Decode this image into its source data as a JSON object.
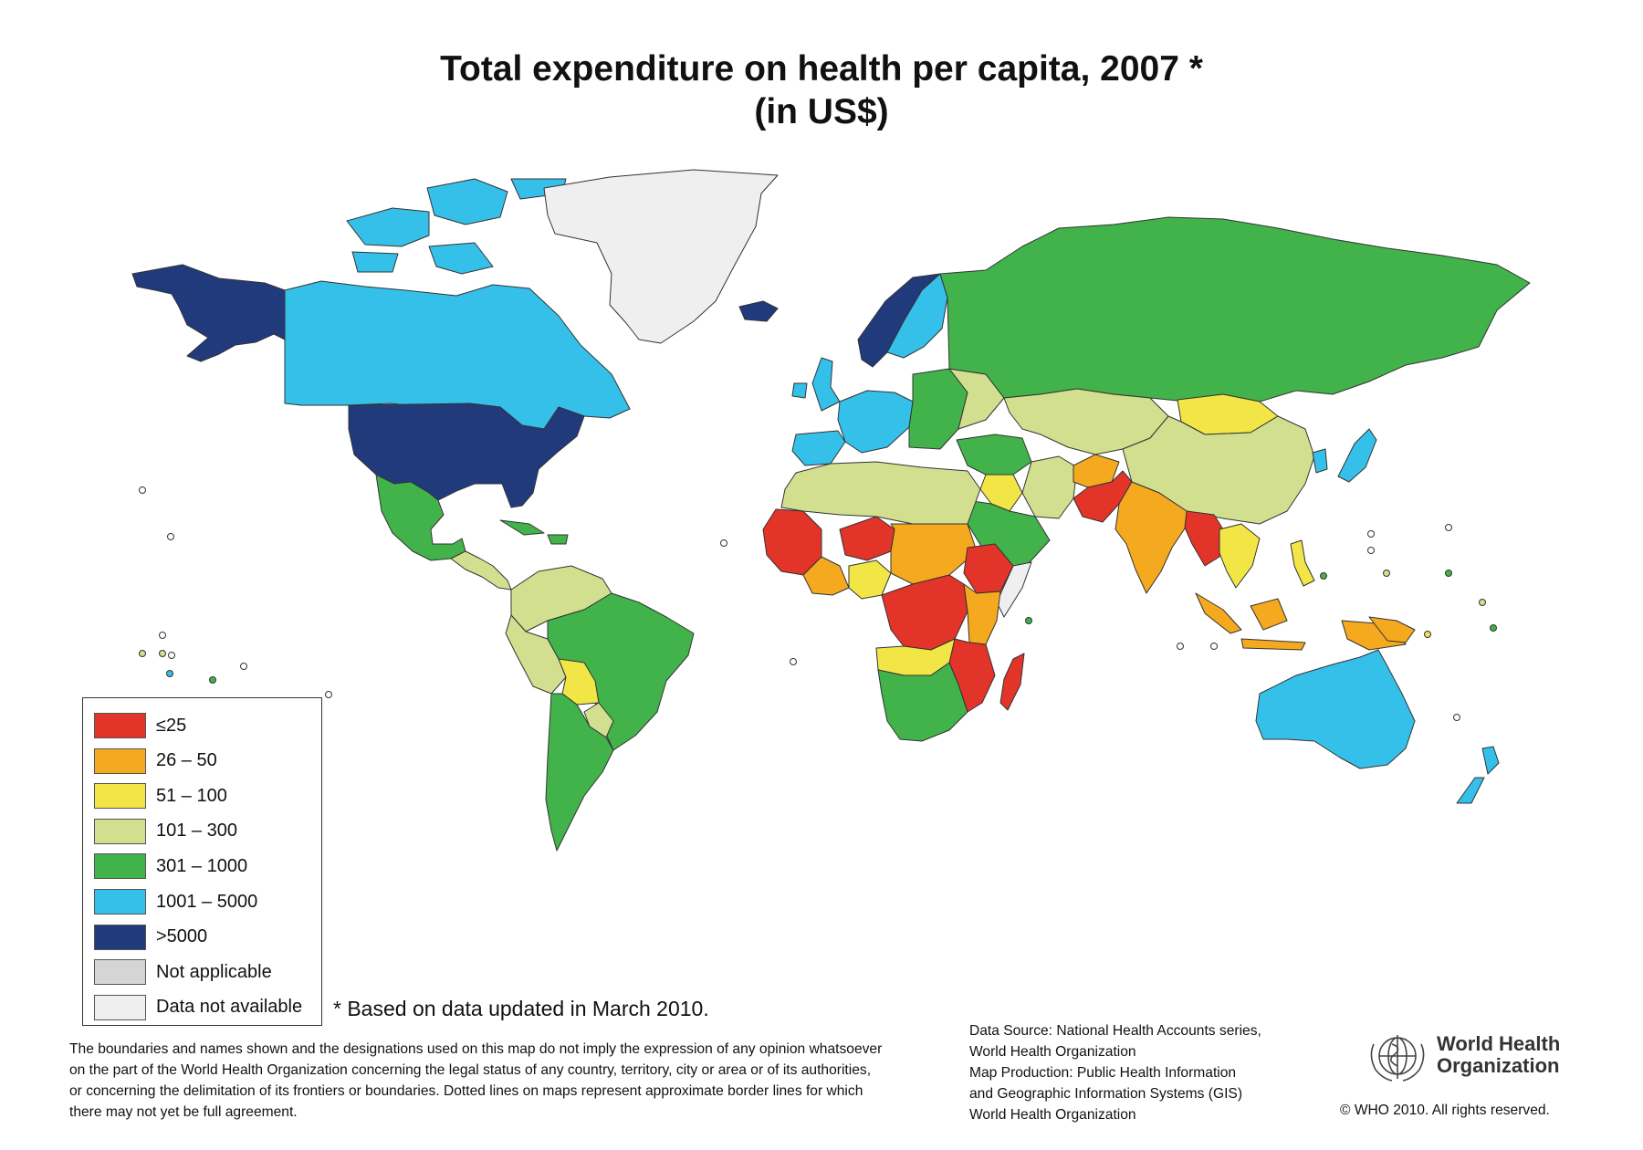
{
  "title_line1": "Total expenditure on health per capita, 2007 *",
  "title_line2": "(in US$)",
  "colors": {
    "c1": "#e23429",
    "c2": "#f4a91f",
    "c3": "#f1e646",
    "c4": "#d2df8e",
    "c5": "#41b34a",
    "c6": "#35c0ea",
    "c7": "#213a7c",
    "na": "#d5d5d5",
    "nd": "#efefef"
  },
  "legend": [
    {
      "label": "≤25",
      "color": "#e23429"
    },
    {
      "label": "26 – 50",
      "color": "#f4a91f"
    },
    {
      "label": "51 – 100",
      "color": "#f1e646"
    },
    {
      "label": "101 – 300",
      "color": "#d2df8e"
    },
    {
      "label": "301 – 1000",
      "color": "#41b34a"
    },
    {
      "label": "1001 – 5000",
      "color": "#35c0ea"
    },
    {
      "label": ">5000",
      "color": "#213a7c"
    },
    {
      "label": "Not applicable",
      "color": "#d5d5d5"
    },
    {
      "label": "Data not available",
      "color": "#efefef"
    }
  ],
  "footnote": "* Based on data updated in March 2010.",
  "disclaimer": [
    "The boundaries and names shown and the designations used on this map do not imply the expression of any opinion whatsoever",
    "on the part of the World Health Organization concerning the legal status of any country, territory, city or area or of its authorities,",
    "or concerning the delimitation of its frontiers or boundaries.  Dotted lines on maps represent approximate border lines for which",
    "there may not yet be full agreement."
  ],
  "source": [
    "Data Source: National Health Accounts series,",
    "World Health Organization",
    "Map Production: Public Health Information",
    "and Geographic Information Systems (GIS)",
    "World Health Organization"
  ],
  "who_name_line1": "World Health",
  "who_name_line2": "Organization",
  "copyright": "© WHO 2010. All rights reserved."
}
